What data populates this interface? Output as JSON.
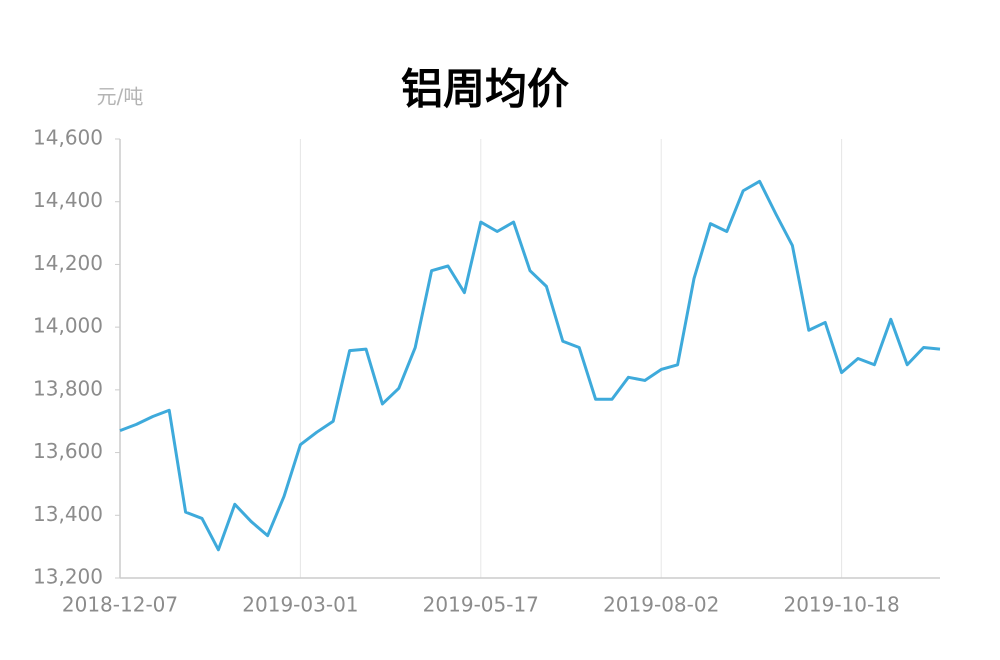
{
  "chart_data": {
    "type": "line",
    "title": "铝周均价",
    "y_unit": "元/吨",
    "categories": [
      "2018-12-07",
      null,
      null,
      null,
      null,
      null,
      null,
      null,
      null,
      null,
      null,
      "2019-03-01",
      null,
      null,
      null,
      null,
      null,
      null,
      null,
      null,
      null,
      null,
      "2019-05-17",
      null,
      null,
      null,
      null,
      null,
      null,
      null,
      null,
      null,
      null,
      "2019-08-02",
      null,
      null,
      null,
      null,
      null,
      null,
      null,
      null,
      null,
      null,
      "2019-10-18",
      null,
      null,
      null,
      null,
      null,
      null
    ],
    "series": [
      {
        "name": "铝周均价",
        "color": "#3eaadb",
        "values": [
          13670,
          13690,
          13715,
          13735,
          13410,
          13390,
          13290,
          13435,
          13380,
          13335,
          13460,
          13625,
          13665,
          13700,
          13925,
          13930,
          13755,
          13805,
          13935,
          14180,
          14195,
          14110,
          14335,
          14305,
          14335,
          14180,
          14130,
          13955,
          13935,
          13770,
          13770,
          13840,
          13830,
          13865,
          13880,
          14155,
          14330,
          14305,
          14435,
          14465,
          14360,
          14260,
          13990,
          14015,
          13855,
          13900,
          13880,
          14025,
          13880,
          13935,
          13930
        ]
      }
    ],
    "ylim": [
      13200,
      14600
    ],
    "yticks": [
      {
        "value": 13200,
        "label": "13,200"
      },
      {
        "value": 13400,
        "label": "13,400"
      },
      {
        "value": 13600,
        "label": "13,600"
      },
      {
        "value": 13800,
        "label": "13,800"
      },
      {
        "value": 14000,
        "label": "14,000"
      },
      {
        "value": 14200,
        "label": "14,200"
      },
      {
        "value": 14400,
        "label": "14,400"
      },
      {
        "value": 14600,
        "label": "14,600"
      }
    ],
    "grid": "x"
  }
}
